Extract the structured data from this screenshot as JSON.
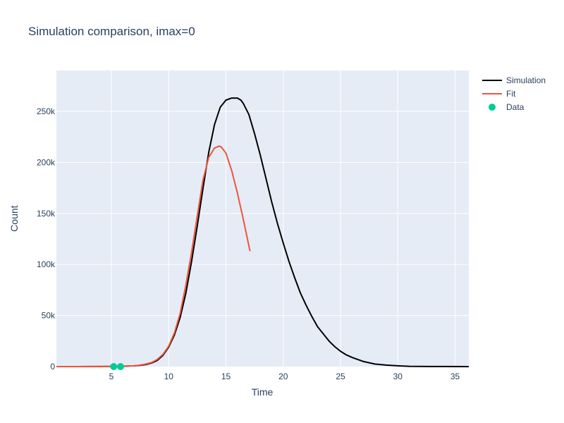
{
  "chart_data": {
    "type": "line",
    "title": "Simulation comparison, imax=0",
    "xlabel": "Time",
    "ylabel": "Count",
    "xlim": [
      0.2,
      36.2
    ],
    "ylim": [
      0,
      290000
    ],
    "x_ticks": [
      5,
      10,
      15,
      20,
      25,
      30,
      35
    ],
    "x_tick_labels": [
      "5",
      "10",
      "15",
      "20",
      "25",
      "30",
      "35"
    ],
    "y_ticks": [
      0,
      50000,
      100000,
      150000,
      200000,
      250000
    ],
    "y_tick_labels": [
      "0",
      "50k",
      "100k",
      "150k",
      "200k",
      "250k"
    ],
    "grid": true,
    "legend_position": "top-right",
    "colors": {
      "plot_background": "#e5ecf6",
      "grid": "#ffffff",
      "text": "#2a3f5f"
    },
    "series": [
      {
        "name": "Simulation",
        "mode": "lines",
        "color": "#000000",
        "x": [
          0.2,
          2,
          4,
          5,
          6,
          6.5,
          7,
          7.5,
          8,
          8.5,
          9,
          9.5,
          10,
          10.5,
          11,
          11.5,
          12,
          12.5,
          13,
          13.5,
          14,
          14.5,
          15,
          15.5,
          16,
          16.3,
          16.5,
          17,
          17.5,
          18,
          18.5,
          19,
          19.5,
          20,
          20.5,
          21,
          21.5,
          22,
          22.5,
          23,
          23.5,
          24,
          24.5,
          25,
          25.5,
          26,
          27,
          28,
          29,
          30,
          31,
          33,
          36.2
        ],
        "y": [
          0,
          0,
          100,
          150,
          300,
          600,
          800,
          1200,
          2000,
          3500,
          6000,
          11000,
          19000,
          31000,
          48000,
          72000,
          103000,
          138000,
          175000,
          210000,
          237000,
          254000,
          261000,
          263000,
          263000,
          261000,
          258000,
          247000,
          228000,
          207000,
          184000,
          161000,
          140000,
          121000,
          103000,
          87000,
          72000,
          60000,
          49000,
          39000,
          32000,
          25000,
          19500,
          15000,
          11500,
          9000,
          5000,
          2500,
          1500,
          800,
          300,
          100,
          0
        ]
      },
      {
        "name": "Fit",
        "mode": "lines",
        "color": "#ef553b",
        "x": [
          0.2,
          2,
          4,
          5,
          6,
          7,
          7.5,
          8,
          8.5,
          9,
          9.5,
          10,
          10.5,
          11,
          11.5,
          12,
          12.5,
          13,
          13.5,
          14,
          14.4,
          14.6,
          15,
          15.5,
          16,
          16.5,
          17.1
        ],
        "y": [
          0,
          0,
          100,
          200,
          400,
          800,
          1500,
          2500,
          4000,
          7000,
          12000,
          20000,
          33000,
          52000,
          80000,
          112000,
          148000,
          183000,
          205000,
          214000,
          216000,
          215000,
          209000,
          192000,
          170000,
          145000,
          113000
        ]
      },
      {
        "name": "Data",
        "mode": "markers",
        "color": "#00cc96",
        "x": [
          5.2,
          5.8
        ],
        "y": [
          0,
          0
        ]
      }
    ]
  }
}
